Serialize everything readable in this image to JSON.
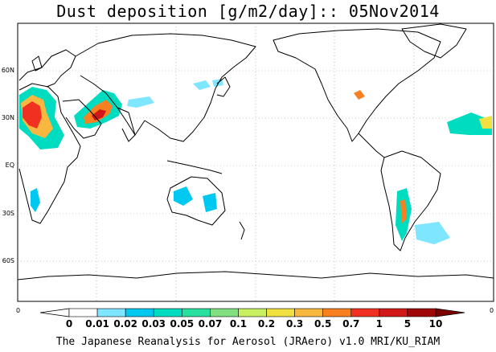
{
  "title": "Dust deposition [g/m2/day]:: 05Nov2014",
  "credit": "The Japanese Reanalysis for Aerosol (JRAero) v1.0 MRI/KU_RIAM",
  "latitude_labels": [
    "60N",
    "30N",
    "EQ",
    "30S",
    "60S"
  ],
  "edge_labels": [
    "0",
    "0"
  ],
  "colorbar": {
    "tick_labels": [
      "0",
      "0.01",
      "0.02",
      "0.03",
      "0.05",
      "0.07",
      "0.1",
      "0.2",
      "0.3",
      "0.5",
      "0.7",
      "1",
      "5",
      "10"
    ],
    "colors": [
      "#ffffff",
      "#ffffff",
      "#7fe6ff",
      "#00c8f0",
      "#00dcc0",
      "#28e0a0",
      "#80e080",
      "#c8f060",
      "#f0e040",
      "#f8b840",
      "#f88020",
      "#f03020",
      "#d01818",
      "#a00808",
      "#7a0000"
    ]
  },
  "map": {
    "projection": "cylindrical equidistant",
    "grid": "dotted",
    "ocean_color": "#ffffff",
    "land_outline_color": "#000000"
  }
}
